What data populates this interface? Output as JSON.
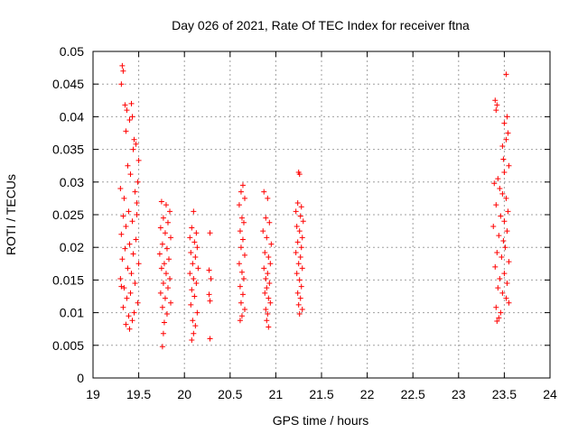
{
  "chart_data": {
    "type": "scatter",
    "title": "Day 026 of 2021, Rate Of TEC Index for receiver ftna",
    "xlabel": "GPS time / hours",
    "ylabel": "ROTI / TECUs",
    "xlim": [
      19,
      24
    ],
    "ylim": [
      0,
      0.05
    ],
    "x_ticks": [
      "19",
      "19.5",
      "20",
      "20.5",
      "21",
      "21.5",
      "22",
      "22.5",
      "23",
      "23.5",
      "24"
    ],
    "y_ticks": [
      "0",
      "0.005",
      "0.01",
      "0.015",
      "0.02",
      "0.025",
      "0.03",
      "0.035",
      "0.04",
      "0.045",
      "0.05"
    ],
    "grid": true,
    "marker": "plus",
    "series_color": "#ff0000",
    "clusters": [
      {
        "x_start": 19.29,
        "x_end": 19.52,
        "y_min": 0.0075,
        "y_max": 0.0478,
        "points": [
          [
            19.32,
            0.0478
          ],
          [
            19.33,
            0.047
          ],
          [
            19.31,
            0.045
          ],
          [
            19.42,
            0.042
          ],
          [
            19.35,
            0.0418
          ],
          [
            19.37,
            0.041
          ],
          [
            19.43,
            0.04
          ],
          [
            19.4,
            0.0395
          ],
          [
            19.36,
            0.0378
          ],
          [
            19.45,
            0.0365
          ],
          [
            19.47,
            0.0358
          ],
          [
            19.44,
            0.035
          ],
          [
            19.5,
            0.0333
          ],
          [
            19.38,
            0.0325
          ],
          [
            19.41,
            0.0312
          ],
          [
            19.49,
            0.03
          ],
          [
            19.3,
            0.029
          ],
          [
            19.46,
            0.0285
          ],
          [
            19.34,
            0.0275
          ],
          [
            19.48,
            0.0268
          ],
          [
            19.39,
            0.0255
          ],
          [
            19.33,
            0.0248
          ],
          [
            19.43,
            0.024
          ],
          [
            19.36,
            0.0232
          ],
          [
            19.31,
            0.022
          ],
          [
            19.47,
            0.0212
          ],
          [
            19.4,
            0.0205
          ],
          [
            19.35,
            0.0198
          ],
          [
            19.44,
            0.019
          ],
          [
            19.32,
            0.0182
          ],
          [
            19.5,
            0.0175
          ],
          [
            19.38,
            0.0168
          ],
          [
            19.42,
            0.016
          ],
          [
            19.3,
            0.0152
          ],
          [
            19.46,
            0.0145
          ],
          [
            19.34,
            0.0138
          ],
          [
            19.41,
            0.013
          ],
          [
            19.37,
            0.0122
          ],
          [
            19.49,
            0.0115
          ],
          [
            19.33,
            0.0108
          ],
          [
            19.45,
            0.01
          ],
          [
            19.39,
            0.0095
          ],
          [
            19.43,
            0.0088
          ],
          [
            19.36,
            0.0082
          ],
          [
            19.4,
            0.0075
          ],
          [
            19.48,
            0.025
          ],
          [
            19.31,
            0.014
          ]
        ]
      },
      {
        "x_start": 19.72,
        "x_end": 19.86,
        "y_min": 0.0048,
        "y_max": 0.0272,
        "points": [
          [
            19.75,
            0.027
          ],
          [
            19.8,
            0.0265
          ],
          [
            19.84,
            0.0255
          ],
          [
            19.77,
            0.0245
          ],
          [
            19.82,
            0.0238
          ],
          [
            19.74,
            0.023
          ],
          [
            19.79,
            0.0222
          ],
          [
            19.85,
            0.0215
          ],
          [
            19.76,
            0.0205
          ],
          [
            19.81,
            0.0198
          ],
          [
            19.73,
            0.019
          ],
          [
            19.83,
            0.0182
          ],
          [
            19.78,
            0.0175
          ],
          [
            19.75,
            0.0168
          ],
          [
            19.8,
            0.016
          ],
          [
            19.84,
            0.0152
          ],
          [
            19.77,
            0.0145
          ],
          [
            19.82,
            0.0138
          ],
          [
            19.74,
            0.013
          ],
          [
            19.79,
            0.0122
          ],
          [
            19.85,
            0.0115
          ],
          [
            19.76,
            0.0108
          ],
          [
            19.81,
            0.0098
          ],
          [
            19.78,
            0.0085
          ],
          [
            19.77,
            0.0068
          ],
          [
            19.76,
            0.0048
          ]
        ]
      },
      {
        "x_start": 20.05,
        "x_end": 20.16,
        "y_min": 0.0055,
        "y_max": 0.0255,
        "points": [
          [
            20.1,
            0.0255
          ],
          [
            20.08,
            0.023
          ],
          [
            20.13,
            0.0222
          ],
          [
            20.06,
            0.0215
          ],
          [
            20.11,
            0.0208
          ],
          [
            20.14,
            0.02
          ],
          [
            20.07,
            0.0192
          ],
          [
            20.12,
            0.0185
          ],
          [
            20.09,
            0.0175
          ],
          [
            20.15,
            0.0168
          ],
          [
            20.06,
            0.016
          ],
          [
            20.1,
            0.0152
          ],
          [
            20.13,
            0.0145
          ],
          [
            20.08,
            0.0135
          ],
          [
            20.11,
            0.0125
          ],
          [
            20.07,
            0.0112
          ],
          [
            20.14,
            0.01
          ],
          [
            20.09,
            0.0088
          ],
          [
            20.12,
            0.008
          ],
          [
            20.1,
            0.0068
          ],
          [
            20.08,
            0.0058
          ]
        ]
      },
      {
        "x_start": 20.25,
        "x_end": 20.3,
        "y_min": 0.006,
        "y_max": 0.0222,
        "points": [
          [
            20.28,
            0.0222
          ],
          [
            20.27,
            0.0165
          ],
          [
            20.29,
            0.0152
          ],
          [
            20.27,
            0.0128
          ],
          [
            20.28,
            0.0118
          ],
          [
            20.28,
            0.006
          ]
        ]
      },
      {
        "x_start": 20.58,
        "x_end": 20.68,
        "y_min": 0.0085,
        "y_max": 0.0295,
        "points": [
          [
            20.64,
            0.0295
          ],
          [
            20.62,
            0.0285
          ],
          [
            20.66,
            0.0275
          ],
          [
            20.6,
            0.0265
          ],
          [
            20.63,
            0.0245
          ],
          [
            20.65,
            0.0238
          ],
          [
            20.61,
            0.0225
          ],
          [
            20.64,
            0.0212
          ],
          [
            20.62,
            0.02
          ],
          [
            20.66,
            0.0188
          ],
          [
            20.6,
            0.0175
          ],
          [
            20.63,
            0.0162
          ],
          [
            20.65,
            0.0152
          ],
          [
            20.61,
            0.014
          ],
          [
            20.64,
            0.0128
          ],
          [
            20.62,
            0.0115
          ],
          [
            20.66,
            0.0105
          ],
          [
            20.63,
            0.0095
          ],
          [
            20.61,
            0.0088
          ]
        ]
      },
      {
        "x_start": 20.84,
        "x_end": 20.98,
        "y_min": 0.0075,
        "y_max": 0.0285,
        "points": [
          [
            20.87,
            0.0285
          ],
          [
            20.91,
            0.0275
          ],
          [
            20.89,
            0.0245
          ],
          [
            20.93,
            0.0238
          ],
          [
            20.86,
            0.0225
          ],
          [
            20.9,
            0.0215
          ],
          [
            20.95,
            0.0205
          ],
          [
            20.88,
            0.0192
          ],
          [
            20.92,
            0.0185
          ],
          [
            20.94,
            0.0175
          ],
          [
            20.87,
            0.0168
          ],
          [
            20.91,
            0.016
          ],
          [
            20.89,
            0.0152
          ],
          [
            20.93,
            0.0145
          ],
          [
            20.9,
            0.0138
          ],
          [
            20.88,
            0.013
          ],
          [
            20.92,
            0.0122
          ],
          [
            20.94,
            0.0115
          ],
          [
            20.89,
            0.0105
          ],
          [
            20.91,
            0.0098
          ],
          [
            20.9,
            0.0088
          ],
          [
            20.92,
            0.0078
          ]
        ]
      },
      {
        "x_start": 21.2,
        "x_end": 21.32,
        "y_min": 0.0095,
        "y_max": 0.0315,
        "points": [
          [
            21.25,
            0.0315
          ],
          [
            21.26,
            0.0312
          ],
          [
            21.24,
            0.0268
          ],
          [
            21.28,
            0.0262
          ],
          [
            21.22,
            0.0255
          ],
          [
            21.27,
            0.0248
          ],
          [
            21.3,
            0.024
          ],
          [
            21.23,
            0.0232
          ],
          [
            21.26,
            0.0225
          ],
          [
            21.29,
            0.0215
          ],
          [
            21.24,
            0.0208
          ],
          [
            21.28,
            0.02
          ],
          [
            21.22,
            0.0192
          ],
          [
            21.27,
            0.0185
          ],
          [
            21.25,
            0.0175
          ],
          [
            21.29,
            0.0168
          ],
          [
            21.23,
            0.016
          ],
          [
            21.26,
            0.015
          ],
          [
            21.28,
            0.014
          ],
          [
            21.24,
            0.013
          ],
          [
            21.27,
            0.0122
          ],
          [
            21.25,
            0.0112
          ],
          [
            21.29,
            0.0105
          ],
          [
            21.26,
            0.0098
          ]
        ]
      },
      {
        "x_start": 23.36,
        "x_end": 23.58,
        "y_min": 0.0085,
        "y_max": 0.0465,
        "points": [
          [
            23.52,
            0.0465
          ],
          [
            23.4,
            0.0425
          ],
          [
            23.42,
            0.0418
          ],
          [
            23.41,
            0.041
          ],
          [
            23.53,
            0.04
          ],
          [
            23.5,
            0.039
          ],
          [
            23.54,
            0.0375
          ],
          [
            23.52,
            0.0365
          ],
          [
            23.48,
            0.0355
          ],
          [
            23.49,
            0.0335
          ],
          [
            23.55,
            0.0325
          ],
          [
            23.5,
            0.0315
          ],
          [
            23.43,
            0.0305
          ],
          [
            23.39,
            0.0298
          ],
          [
            23.45,
            0.029
          ],
          [
            23.48,
            0.0282
          ],
          [
            23.52,
            0.0275
          ],
          [
            23.41,
            0.0265
          ],
          [
            23.54,
            0.0255
          ],
          [
            23.46,
            0.0248
          ],
          [
            23.5,
            0.024
          ],
          [
            23.38,
            0.0232
          ],
          [
            23.53,
            0.0225
          ],
          [
            23.44,
            0.0218
          ],
          [
            23.49,
            0.021
          ],
          [
            23.51,
            0.02
          ],
          [
            23.42,
            0.0192
          ],
          [
            23.47,
            0.0185
          ],
          [
            23.55,
            0.0178
          ],
          [
            23.4,
            0.017
          ],
          [
            23.5,
            0.016
          ],
          [
            23.45,
            0.0152
          ],
          [
            23.53,
            0.0145
          ],
          [
            23.43,
            0.0138
          ],
          [
            23.48,
            0.013
          ],
          [
            23.52,
            0.0122
          ],
          [
            23.55,
            0.0115
          ],
          [
            23.41,
            0.0108
          ],
          [
            23.46,
            0.01
          ],
          [
            23.44,
            0.0092
          ],
          [
            23.42,
            0.0087
          ]
        ]
      }
    ]
  }
}
